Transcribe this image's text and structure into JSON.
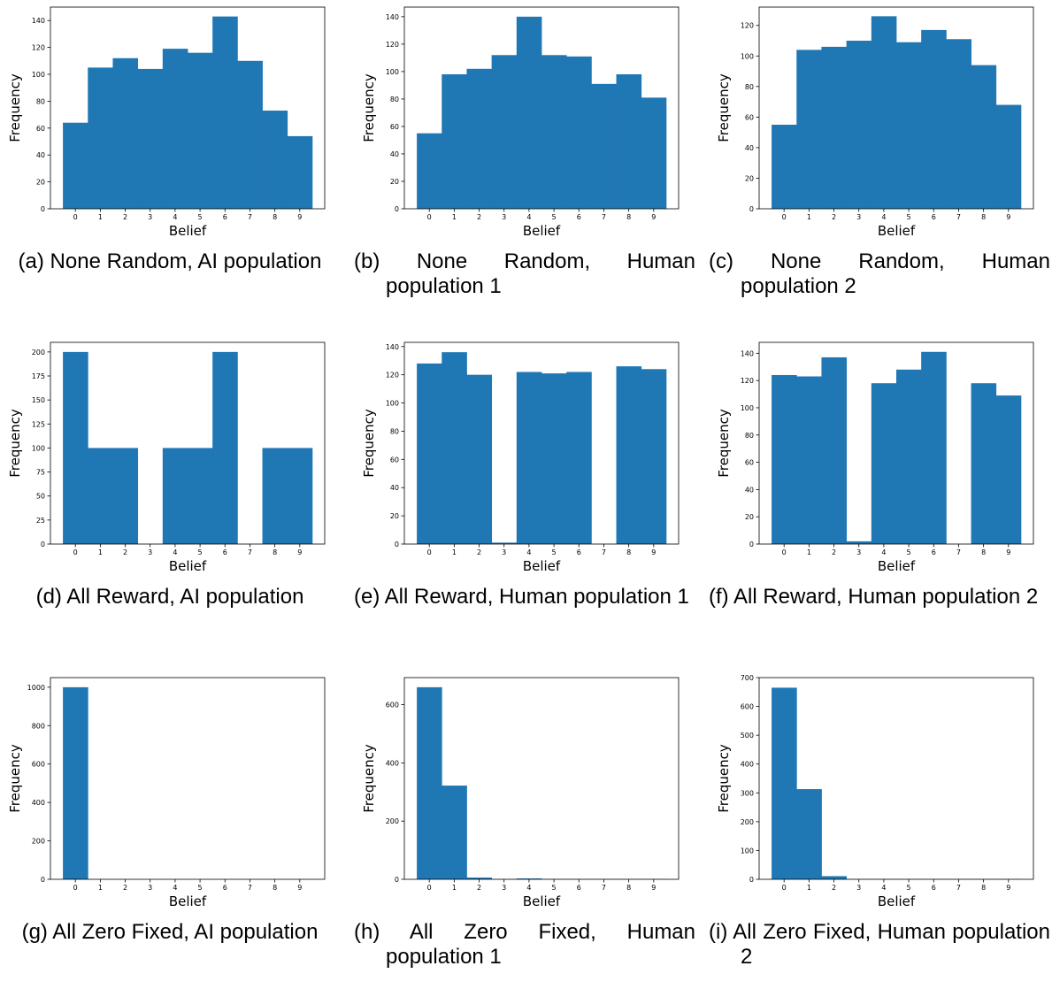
{
  "colors": {
    "bar": "#1f77b4",
    "axis": "#000000"
  },
  "chart_data": [
    {
      "id": "a",
      "type": "bar",
      "caption": "(a) None Random, AI population",
      "caption_style": "center",
      "categories": [
        "0",
        "1",
        "2",
        "3",
        "4",
        "5",
        "6",
        "7",
        "8",
        "9"
      ],
      "values": [
        64,
        105,
        112,
        104,
        119,
        116,
        143,
        110,
        73,
        54
      ],
      "xlabel": "Belief",
      "ylabel": "Frequency",
      "ylim": [
        0,
        150
      ],
      "yticks": [
        0,
        20,
        40,
        60,
        80,
        100,
        120,
        140
      ]
    },
    {
      "id": "b",
      "type": "bar",
      "caption": "(b) None Random, Human population 1",
      "caption_style": "hang",
      "categories": [
        "0",
        "1",
        "2",
        "3",
        "4",
        "5",
        "6",
        "7",
        "8",
        "9"
      ],
      "values": [
        55,
        98,
        102,
        112,
        140,
        112,
        111,
        91,
        98,
        81
      ],
      "xlabel": "Belief",
      "ylabel": "Frequency",
      "ylim": [
        0,
        147
      ],
      "yticks": [
        0,
        20,
        40,
        60,
        80,
        100,
        120,
        140
      ]
    },
    {
      "id": "c",
      "type": "bar",
      "caption": "(c) None Random, Human population 2",
      "caption_style": "hang",
      "categories": [
        "0",
        "1",
        "2",
        "3",
        "4",
        "5",
        "6",
        "7",
        "8",
        "9"
      ],
      "values": [
        55,
        104,
        106,
        110,
        126,
        109,
        117,
        111,
        94,
        68
      ],
      "xlabel": "Belief",
      "ylabel": "Frequency",
      "ylim": [
        0,
        132
      ],
      "yticks": [
        0,
        20,
        40,
        60,
        80,
        100,
        120
      ]
    },
    {
      "id": "d",
      "type": "bar",
      "caption": "(d) All Reward, AI population",
      "caption_style": "center",
      "categories": [
        "0",
        "1",
        "2",
        "3",
        "4",
        "5",
        "6",
        "7",
        "8",
        "9"
      ],
      "values": [
        200,
        100,
        100,
        0,
        100,
        100,
        200,
        0,
        100,
        100
      ],
      "xlabel": "Belief",
      "ylabel": "Frequency",
      "ylim": [
        0,
        210
      ],
      "yticks": [
        0,
        25,
        50,
        75,
        100,
        125,
        150,
        175,
        200
      ]
    },
    {
      "id": "e",
      "type": "bar",
      "caption": "(e) All Reward, Human population 1",
      "caption_style": "hang",
      "categories": [
        "0",
        "1",
        "2",
        "3",
        "4",
        "5",
        "6",
        "7",
        "8",
        "9"
      ],
      "values": [
        128,
        136,
        120,
        1,
        122,
        121,
        122,
        0,
        126,
        124
      ],
      "xlabel": "Belief",
      "ylabel": "Frequency",
      "ylim": [
        0,
        143
      ],
      "yticks": [
        0,
        20,
        40,
        60,
        80,
        100,
        120,
        140
      ]
    },
    {
      "id": "f",
      "type": "bar",
      "caption": "(f) All Reward, Human population 2",
      "caption_style": "hang",
      "categories": [
        "0",
        "1",
        "2",
        "3",
        "4",
        "5",
        "6",
        "7",
        "8",
        "9"
      ],
      "values": [
        124,
        123,
        137,
        2,
        118,
        128,
        141,
        0,
        118,
        109
      ],
      "xlabel": "Belief",
      "ylabel": "Frequency",
      "ylim": [
        0,
        148
      ],
      "yticks": [
        0,
        20,
        40,
        60,
        80,
        100,
        120,
        140
      ]
    },
    {
      "id": "g",
      "type": "bar",
      "caption": "(g) All Zero Fixed, AI population",
      "caption_style": "center",
      "categories": [
        "0",
        "1",
        "2",
        "3",
        "4",
        "5",
        "6",
        "7",
        "8",
        "9"
      ],
      "values": [
        1000,
        0,
        0,
        0,
        0,
        0,
        0,
        0,
        0,
        0
      ],
      "xlabel": "Belief",
      "ylabel": "Frequency",
      "ylim": [
        0,
        1050
      ],
      "yticks": [
        0,
        200,
        400,
        600,
        800,
        1000
      ]
    },
    {
      "id": "h",
      "type": "bar",
      "caption": "(h) All Zero Fixed, Human population 1",
      "caption_style": "hang",
      "categories": [
        "0",
        "1",
        "2",
        "3",
        "4",
        "5",
        "6",
        "7",
        "8",
        "9"
      ],
      "values": [
        660,
        322,
        6,
        1,
        3,
        1,
        1,
        1,
        1,
        1
      ],
      "xlabel": "Belief",
      "ylabel": "Frequency",
      "ylim": [
        0,
        693
      ],
      "yticks": [
        0,
        200,
        400,
        600
      ]
    },
    {
      "id": "i",
      "type": "bar",
      "caption": "(i) All Zero Fixed, Human population 2",
      "caption_style": "hang",
      "categories": [
        "0",
        "1",
        "2",
        "3",
        "4",
        "5",
        "6",
        "7",
        "8",
        "9"
      ],
      "values": [
        665,
        313,
        11,
        1,
        1,
        1,
        1,
        1,
        1,
        1
      ],
      "xlabel": "Belief",
      "ylabel": "Frequency",
      "ylim": [
        0,
        700
      ],
      "yticks": [
        0,
        100,
        200,
        300,
        400,
        500,
        600,
        700
      ]
    }
  ]
}
